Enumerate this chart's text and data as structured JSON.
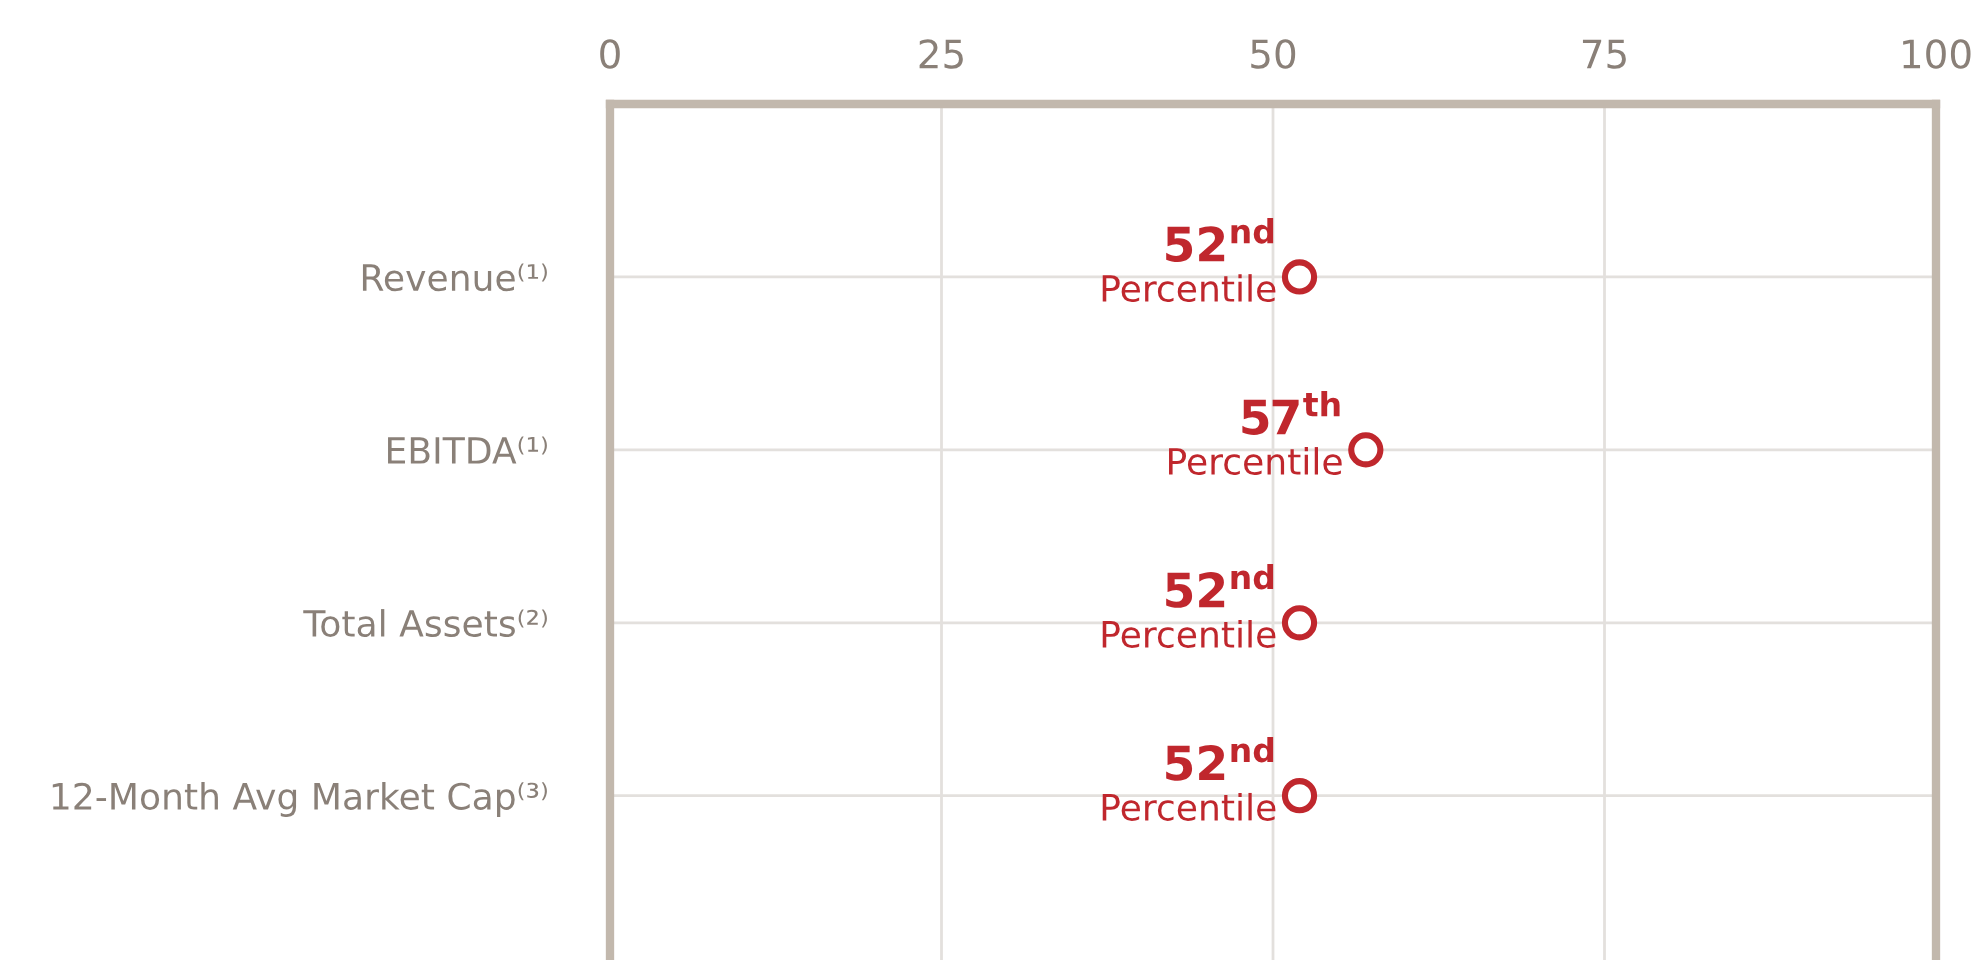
{
  "chart_data": {
    "type": "scatter",
    "orientation": "horizontal",
    "categories": [
      "Revenue⁽¹⁾",
      "EBITDA⁽¹⁾",
      "Total Assets⁽²⁾",
      "12-Month Avg Market Cap⁽³⁾"
    ],
    "series": [
      {
        "color": "#c0272d",
        "values": [
          52,
          57,
          52,
          52
        ],
        "value_labels": [
          "52$^{nd}$\nPercentile",
          "57$^{th}$\nPercentile",
          "52$^{nd}$\nPercentile",
          "52$^{nd}$\nPercentile"
        ]
      }
    ],
    "xlim": [
      0,
      100
    ],
    "xticks": [
      0,
      25,
      50,
      75,
      100
    ],
    "grid": true,
    "marker": "circle",
    "legend": false
  }
}
